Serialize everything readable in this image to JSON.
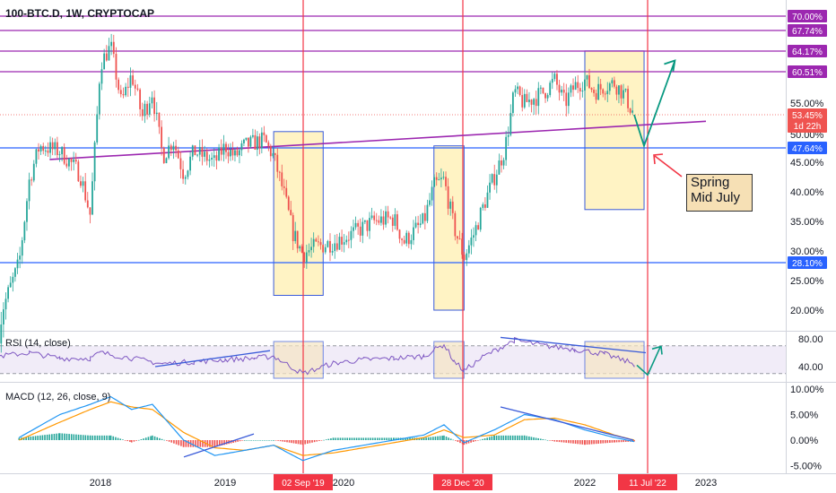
{
  "header": {
    "title": "100-BTC.D, 1W, CRYPTOCAP"
  },
  "rsi": {
    "label": "RSI (14, close)",
    "ticks": [
      "80.00",
      "40.00"
    ]
  },
  "macd": {
    "label": "MACD (12, 26, close, 9)",
    "ticks": [
      "10.00%",
      "5.00%",
      "0.00%",
      "-5.00%"
    ]
  },
  "note": {
    "line1": "Spring",
    "line2": "Mid July"
  },
  "colors": {
    "up": "#26a69a",
    "down": "#ef5350",
    "level": "#9c27b0",
    "support": "#2962ff",
    "vline": "#f23645",
    "zone": "#fff3c4",
    "rsi": "#7e57c2",
    "macd": "#2196f3",
    "signal": "#ff9800",
    "arrow": "#089981",
    "trend": "#3a5bd9"
  },
  "chart_data": {
    "type": "candlestick",
    "title": "100-BTC.D, 1W, CRYPTOCAP",
    "y_axis_ticks": [
      "55.00%",
      "50.00%",
      "45.00%",
      "40.00%",
      "35.00%",
      "30.00%",
      "25.00%",
      "20.00%"
    ],
    "x_axis_ticks": [
      "2018",
      "2019",
      "2020",
      "2022",
      "2023"
    ],
    "date_markers": [
      "02 Sep '19",
      "28 Dec '20",
      "11 Jul '22"
    ],
    "levels": [
      {
        "value": 70.0,
        "label": "70.00%"
      },
      {
        "value": 67.74,
        "label": "67.74%"
      },
      {
        "value": 64.17,
        "label": "64.17%"
      },
      {
        "value": 60.51,
        "label": "60.51%"
      },
      {
        "value": 47.64,
        "label": "47.64%"
      },
      {
        "value": 28.1,
        "label": "28.10%"
      }
    ],
    "current": {
      "value": 53.45,
      "label": "53.45%",
      "countdown": "1d 22h"
    },
    "price_path": [
      [
        "2017-03",
        18.5
      ],
      [
        "2017-05",
        28
      ],
      [
        "2017-06",
        42
      ],
      [
        "2017-07",
        48
      ],
      [
        "2017-09",
        47
      ],
      [
        "2017-11",
        43
      ],
      [
        "2017-12",
        36
      ],
      [
        "2018-01",
        62
      ],
      [
        "2018-02",
        65
      ],
      [
        "2018-03",
        55
      ],
      [
        "2018-04",
        60
      ],
      [
        "2018-05",
        53
      ],
      [
        "2018-06",
        57
      ],
      [
        "2018-07",
        46
      ],
      [
        "2018-08",
        49
      ],
      [
        "2018-09",
        43
      ],
      [
        "2018-10",
        47
      ],
      [
        "2018-12",
        45
      ],
      [
        "2019-01",
        48
      ],
      [
        "2019-02",
        46
      ],
      [
        "2019-03",
        48
      ],
      [
        "2019-05",
        49
      ],
      [
        "2019-06",
        46
      ],
      [
        "2019-07",
        40
      ],
      [
        "2019-08",
        33
      ],
      [
        "2019-09",
        29.5
      ],
      [
        "2019-10",
        30.5
      ],
      [
        "2019-12",
        31.5
      ],
      [
        "2020-02",
        33
      ],
      [
        "2020-04",
        35
      ],
      [
        "2020-06",
        35.5
      ],
      [
        "2020-07",
        31.5
      ],
      [
        "2020-09",
        35
      ],
      [
        "2020-10",
        41
      ],
      [
        "2020-11",
        42
      ],
      [
        "2020-12",
        34
      ],
      [
        "2021-01",
        29
      ],
      [
        "2021-02",
        33
      ],
      [
        "2021-03",
        38
      ],
      [
        "2021-05",
        47
      ],
      [
        "2021-06",
        57
      ],
      [
        "2021-07",
        55
      ],
      [
        "2021-08",
        56
      ],
      [
        "2021-09",
        57
      ],
      [
        "2021-10",
        59
      ],
      [
        "2021-11",
        55
      ],
      [
        "2021-12",
        58
      ],
      [
        "2022-01",
        59
      ],
      [
        "2022-02",
        57
      ],
      [
        "2022-03",
        58
      ],
      [
        "2022-04",
        58.5
      ],
      [
        "2022-05",
        56.5
      ],
      [
        "2022-06",
        53.45
      ]
    ],
    "trendline": [
      [
        "2017-08",
        45.5
      ],
      [
        "2023-01",
        52.3
      ]
    ],
    "projection": [
      [
        "2022-06",
        53.45
      ],
      [
        "2022-07",
        48
      ],
      [
        "2022-10",
        62.5
      ]
    ],
    "zones": [
      {
        "from": "2019-06",
        "to": "2019-11",
        "high": 50.5,
        "low": 22.5
      },
      {
        "from": "2020-10",
        "to": "2021-01",
        "high": 48,
        "low": 20
      },
      {
        "from": "2022-01",
        "to": "2022-07",
        "high": 64.2,
        "low": 37
      }
    ],
    "rsi_path": [
      [
        "2017-03",
        55
      ],
      [
        "2017-06",
        60
      ],
      [
        "2017-09",
        52
      ],
      [
        "2017-12",
        52
      ],
      [
        "2018-01",
        60
      ],
      [
        "2018-04",
        52
      ],
      [
        "2018-07",
        44
      ],
      [
        "2018-10",
        47
      ],
      [
        "2019-01",
        50
      ],
      [
        "2019-04",
        52
      ],
      [
        "2019-06",
        55
      ],
      [
        "2019-08",
        38
      ],
      [
        "2019-09",
        30
      ],
      [
        "2019-12",
        45
      ],
      [
        "2020-03",
        50
      ],
      [
        "2020-06",
        52
      ],
      [
        "2020-09",
        55
      ],
      [
        "2020-11",
        72
      ],
      [
        "2020-12",
        48
      ],
      [
        "2021-01",
        34
      ],
      [
        "2021-03",
        55
      ],
      [
        "2021-06",
        78
      ],
      [
        "2021-09",
        70
      ],
      [
        "2021-12",
        65
      ],
      [
        "2022-03",
        58
      ],
      [
        "2022-06",
        44
      ]
    ],
    "macd_path": [
      [
        "2017-05",
        0.5
      ],
      [
        "2017-09",
        5
      ],
      [
        "2017-12",
        7
      ],
      [
        "2018-02",
        8.5
      ],
      [
        "2018-04",
        6
      ],
      [
        "2018-06",
        7
      ],
      [
        "2018-09",
        0
      ],
      [
        "2018-12",
        -3
      ],
      [
        "2019-03",
        -2
      ],
      [
        "2019-06",
        -1
      ],
      [
        "2019-09",
        -4
      ],
      [
        "2019-12",
        -2
      ],
      [
        "2020-06",
        0
      ],
      [
        "2020-09",
        1
      ],
      [
        "2020-11",
        3
      ],
      [
        "2021-01",
        -0.5
      ],
      [
        "2021-04",
        2
      ],
      [
        "2021-07",
        5
      ],
      [
        "2021-10",
        4
      ],
      [
        "2022-01",
        2
      ],
      [
        "2022-04",
        0.5
      ],
      [
        "2022-06",
        -0.3
      ]
    ],
    "signal_path": [
      [
        "2017-05",
        0
      ],
      [
        "2017-09",
        3.5
      ],
      [
        "2017-12",
        6
      ],
      [
        "2018-02",
        7.5
      ],
      [
        "2018-04",
        6.5
      ],
      [
        "2018-06",
        6
      ],
      [
        "2018-09",
        1.5
      ],
      [
        "2018-12",
        -1.5
      ],
      [
        "2019-03",
        -2
      ],
      [
        "2019-06",
        -1
      ],
      [
        "2019-09",
        -3
      ],
      [
        "2019-12",
        -2.5
      ],
      [
        "2020-06",
        -0.5
      ],
      [
        "2020-09",
        0.5
      ],
      [
        "2020-11",
        2
      ],
      [
        "2021-01",
        0.5
      ],
      [
        "2021-04",
        1
      ],
      [
        "2021-07",
        4
      ],
      [
        "2021-10",
        4.3
      ],
      [
        "2022-01",
        3
      ],
      [
        "2022-04",
        1
      ],
      [
        "2022-06",
        0
      ]
    ]
  }
}
